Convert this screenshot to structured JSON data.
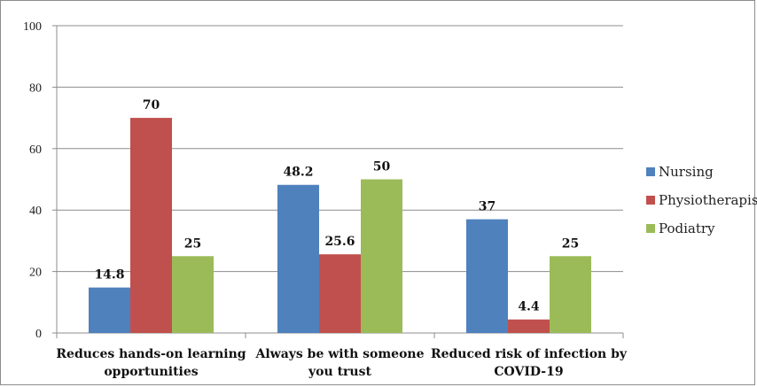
{
  "chart_data": {
    "type": "bar",
    "title": "",
    "xlabel": "",
    "ylabel": "",
    "ylim": [
      0,
      100
    ],
    "yticks": [
      0,
      20,
      40,
      60,
      80,
      100
    ],
    "grid": true,
    "legend_position": "right",
    "categories": [
      [
        "Reduces hands-on learning",
        "opportunities"
      ],
      [
        "Always be with someone",
        "you trust"
      ],
      [
        "Reduced risk of infection by",
        "COVID-19"
      ]
    ],
    "series": [
      {
        "name": "Nursing",
        "color": "#4f81bd",
        "values": [
          14.8,
          48.2,
          37
        ]
      },
      {
        "name": "Physiotherapist",
        "color": "#c0504d",
        "values": [
          70,
          25.6,
          4.4
        ]
      },
      {
        "name": "Podiatry",
        "color": "#9bbb59",
        "values": [
          25,
          50,
          25
        ]
      }
    ]
  }
}
